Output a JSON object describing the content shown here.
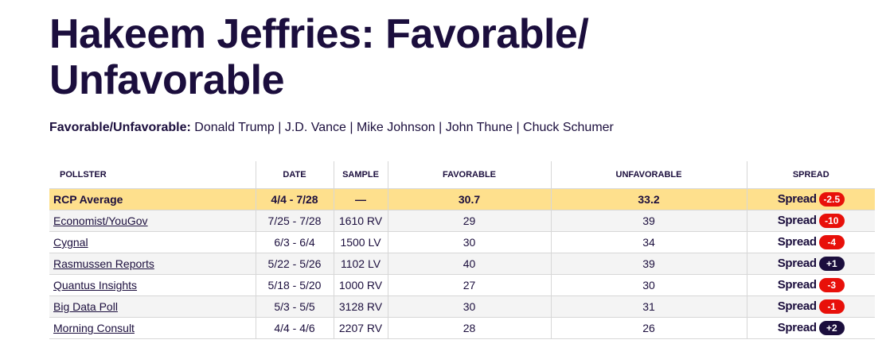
{
  "title": "Hakeem Jeffries: Favorable/ Unfavorable",
  "subnav": {
    "label": "Favorable/Unfavorable:",
    "links": [
      "Donald Trump",
      "J.D. Vance",
      "Mike Johnson",
      "John Thune",
      "Chuck Schumer"
    ],
    "separator": "|"
  },
  "table": {
    "headers": {
      "pollster": "POLLSTER",
      "date": "DATE",
      "sample": "SAMPLE",
      "favorable": "FAVORABLE",
      "unfavorable": "UNFAVORABLE",
      "spread": "SPREAD"
    },
    "spread_word": "Spread",
    "average": {
      "pollster": "RCP Average",
      "date": "4/4 - 7/28",
      "sample": "—",
      "favorable": "30.7",
      "unfavorable": "33.2",
      "spread": "-2.5"
    },
    "rows": [
      {
        "pollster": "Economist/YouGov",
        "date": "7/25 - 7/28",
        "sample": "1610 RV",
        "favorable": "29",
        "unfavorable": "39",
        "spread": "-10"
      },
      {
        "pollster": "Cygnal",
        "date": "6/3 - 6/4",
        "sample": "1500 LV",
        "favorable": "30",
        "unfavorable": "34",
        "spread": "-4"
      },
      {
        "pollster": "Rasmussen Reports",
        "date": "5/22 - 5/26",
        "sample": "1102 LV",
        "favorable": "40",
        "unfavorable": "39",
        "spread": "+1"
      },
      {
        "pollster": "Quantus Insights",
        "date": "5/18 - 5/20",
        "sample": "1000 RV",
        "favorable": "27",
        "unfavorable": "30",
        "spread": "-3"
      },
      {
        "pollster": "Big Data Poll",
        "date": "5/3 - 5/5",
        "sample": "3128 RV",
        "favorable": "30",
        "unfavorable": "31",
        "spread": "-1"
      },
      {
        "pollster": "Morning Consult",
        "date": "4/4 - 4/6",
        "sample": "2207 RV",
        "favorable": "28",
        "unfavorable": "26",
        "spread": "+2"
      }
    ]
  },
  "colors": {
    "text": "#1b0e3d",
    "average_row": "#fee08d",
    "alt_row": "#f4f4f4",
    "negative_spread": "#e8100a",
    "positive_spread": "#1b0e3d"
  }
}
